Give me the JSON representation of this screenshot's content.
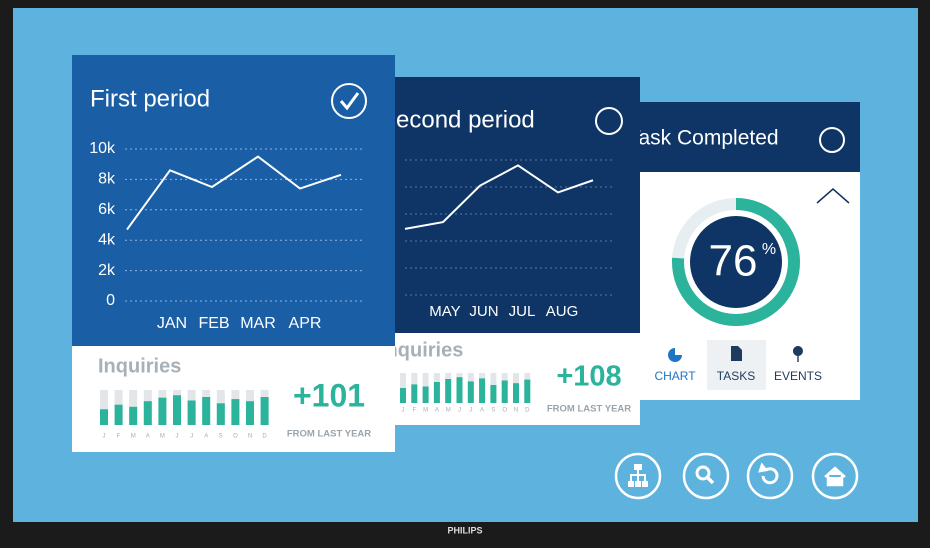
{
  "brand": "PHILIPS",
  "cards": [
    {
      "title": "First period",
      "checked": true,
      "chart": {
        "type": "line",
        "xlabels": [
          "JAN",
          "FEB",
          "MAR",
          "APR"
        ],
        "values": [
          4700,
          8600,
          7500,
          9500,
          7400,
          8300
        ],
        "ylim": [
          0,
          10000
        ],
        "yticks": [
          {
            "value": 0,
            "label": "0"
          },
          {
            "value": 2000,
            "label": "2k"
          },
          {
            "value": 4000,
            "label": "4k"
          },
          {
            "value": 6000,
            "label": "6k"
          },
          {
            "value": 8000,
            "label": "8k"
          },
          {
            "value": 10000,
            "label": "10k"
          }
        ]
      },
      "inquiries": {
        "label": "Inquiries",
        "months": [
          "J",
          "F",
          "M",
          "A",
          "M",
          "J",
          "J",
          "A",
          "S",
          "O",
          "N",
          "D"
        ],
        "values": [
          45,
          58,
          52,
          68,
          78,
          85,
          70,
          80,
          62,
          74,
          68,
          80
        ],
        "stat": "+101",
        "stat_note": "FROM LAST YEAR"
      }
    },
    {
      "title": "Second period",
      "checked": false,
      "chart": {
        "type": "line",
        "xlabels": [
          "MAY",
          "JUN",
          "JUL",
          "AUG"
        ],
        "values": [
          4900,
          5400,
          8100,
          9600,
          7600,
          8500
        ],
        "ylim": [
          0,
          10000
        ]
      },
      "inquiries": {
        "label": "Inquiries",
        "months": [
          "J",
          "F",
          "M",
          "A",
          "M",
          "J",
          "J",
          "A",
          "S",
          "O",
          "N",
          "D"
        ],
        "values": [
          50,
          62,
          55,
          70,
          80,
          86,
          72,
          82,
          60,
          75,
          66,
          78
        ],
        "stat": "+108",
        "stat_note": "FROM LAST YEAR"
      }
    },
    {
      "title": "Task Completed",
      "checked": false,
      "progress": 76,
      "progress_unit": "%",
      "tabs": [
        "CHART",
        "TASKS",
        "EVENTS"
      ]
    }
  ]
}
